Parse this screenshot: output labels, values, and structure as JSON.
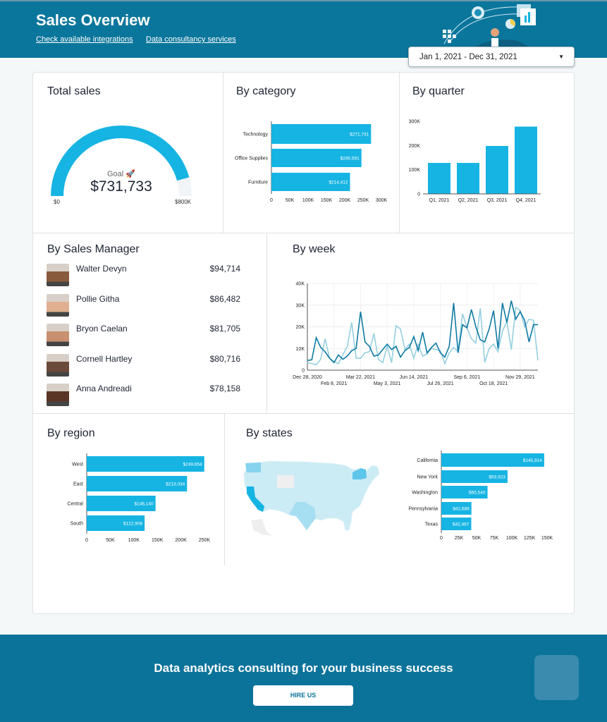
{
  "header": {
    "title": "Sales Overview",
    "links": [
      "Check available integrations",
      "Data consultancy services"
    ],
    "date_range": "Jan 1, 2021 - Dec 31, 2021",
    "date_icon": "caret-down-icon"
  },
  "colors": {
    "header_bg": "#0b769c",
    "bar": "#16b4e3",
    "line_dark": "#0e7aa3",
    "line_light": "#95cfe0",
    "gauge_rest": "#f1f5f7"
  },
  "total_sales": {
    "title": "Total sales",
    "goal_label": "Goal 🚀",
    "value": "$731,733",
    "min_label": "$0",
    "max_label": "$800K",
    "value_num": 731733,
    "max_num": 800000
  },
  "managers": {
    "title": "By Sales Manager",
    "items": [
      {
        "name": "Walter Devyn",
        "amount": "$94,714"
      },
      {
        "name": "Pollie Githa",
        "amount": "$86,482"
      },
      {
        "name": "Bryon Caelan",
        "amount": "$81,705"
      },
      {
        "name": "Cornell Hartley",
        "amount": "$80,716"
      },
      {
        "name": "Anna Andreadi",
        "amount": "$78,158"
      }
    ]
  },
  "panels": {
    "category": "By category",
    "quarter": "By quarter",
    "week": "By week",
    "region": "By region",
    "states": "By states"
  },
  "chart_data": [
    {
      "type": "bar",
      "orientation": "horizontal",
      "categories": [
        "Technology",
        "Office Supplies",
        "Furniture"
      ],
      "values": [
        271731,
        245591,
        214412
      ],
      "data_labels": [
        "$271,731",
        "$245,591",
        "$214,412"
      ],
      "ticks": [
        "0",
        "50K",
        "100K",
        "150K",
        "200K",
        "250K",
        "300K"
      ],
      "xlim": [
        0,
        300000
      ]
    },
    {
      "type": "bar",
      "categories": [
        "Q1, 2021",
        "Q2, 2021",
        "Q3, 2021",
        "Q4, 2021"
      ],
      "values": [
        128000,
        128000,
        198000,
        278000
      ],
      "ticks": [
        "0",
        "100K",
        "200K",
        "300K"
      ],
      "ylim": [
        0,
        300000
      ]
    },
    {
      "type": "line",
      "x_ticks": [
        "Dec 28, 2020",
        "Feb 8, 2021",
        "Mar 22, 2021",
        "May 3, 2021",
        "Jun 14, 2021",
        "Jul 26, 2021",
        "Sep 6, 2021",
        "Oct 18, 2021",
        "Nov 29, 2021"
      ],
      "y_ticks": [
        "0",
        "10K",
        "20K",
        "30K",
        "40K"
      ],
      "ylim": [
        0,
        40000
      ],
      "grid": true,
      "series": [
        {
          "values": [
            4500,
            4800,
            15000,
            10500,
            8500,
            5500,
            3500,
            7000,
            5000,
            6500,
            9000,
            10000,
            27000,
            13000,
            11000,
            6500,
            7000,
            9500,
            12000,
            9500,
            11000,
            6000,
            9000,
            10500,
            15500,
            9000,
            17500,
            8000,
            10500,
            12500,
            8000,
            6000,
            11000,
            31000,
            8000,
            21000,
            19500,
            28000,
            20000,
            14000,
            13000,
            19000,
            27500,
            10000,
            31000,
            22000,
            32000,
            23500,
            27000,
            23000,
            13000,
            21000,
            21000
          ]
        },
        {
          "values": [
            3500,
            3000,
            2500,
            5000,
            14500,
            5500,
            4000,
            3000,
            7000,
            11000,
            22000,
            5500,
            5500,
            8000,
            8500,
            17000,
            5000,
            3500,
            11000,
            3500,
            20500,
            19000,
            9500,
            12000,
            5500,
            12000,
            6500,
            7500,
            10000,
            9500,
            9000,
            3000,
            8000,
            10500,
            8500,
            26000,
            19500,
            14500,
            12500,
            28500,
            3500,
            10000,
            12000,
            8500,
            18000,
            22500,
            9500,
            29000,
            27500,
            20000,
            23500,
            23000,
            4500
          ]
        }
      ]
    },
    {
      "type": "bar",
      "orientation": "horizontal",
      "categories": [
        "West",
        "East",
        "Central",
        "South"
      ],
      "values": [
        249654,
        213034,
        146140,
        122906
      ],
      "data_labels": [
        "$249,654",
        "$213,034",
        "$146,140",
        "$122,906"
      ],
      "ticks": [
        "0",
        "50K",
        "100K",
        "150K",
        "200K",
        "250K"
      ],
      "xlim": [
        0,
        250000
      ]
    },
    {
      "type": "bar",
      "orientation": "horizontal",
      "categories": [
        "California",
        "New York",
        "Washington",
        "Pennsylvania",
        "Texas"
      ],
      "values": [
        145914,
        93923,
        65540,
        42688,
        42467
      ],
      "data_labels": [
        "$145,914",
        "$93,923",
        "$65,540",
        "$42,688",
        "$42,467"
      ],
      "ticks": [
        "0",
        "25K",
        "50K",
        "75K",
        "100K",
        "125K",
        "150K"
      ],
      "xlim": [
        0,
        150000
      ]
    }
  ],
  "footer": {
    "cta": "Data analytics consulting for your business success",
    "button": "HIRE US"
  }
}
